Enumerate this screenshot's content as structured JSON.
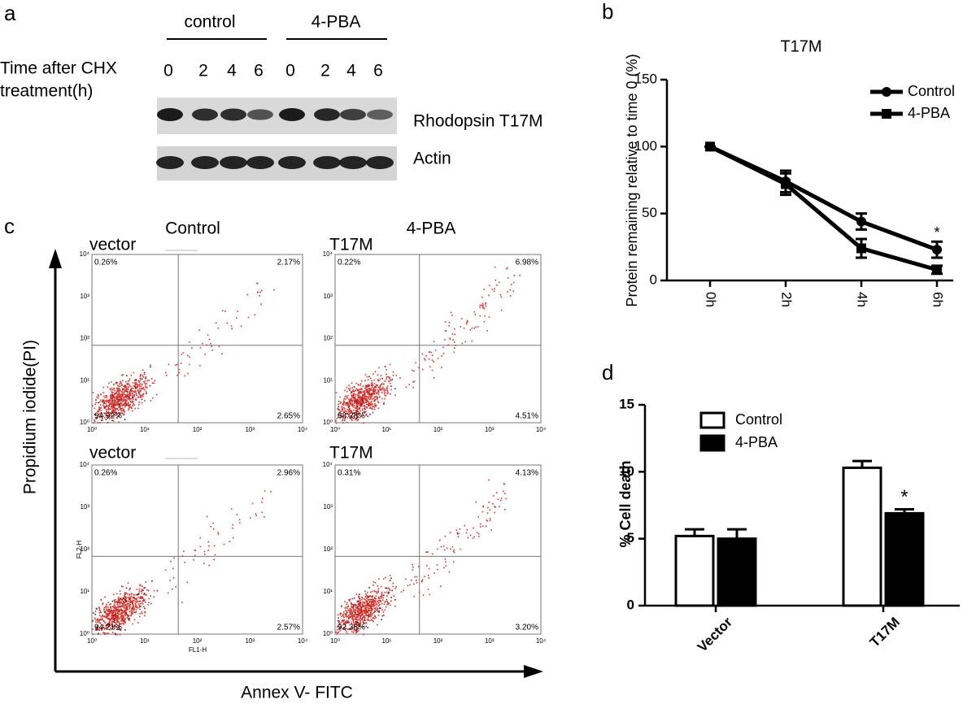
{
  "panel_labels": [
    "a",
    "b",
    "c",
    "d"
  ],
  "blot": {
    "groups": [
      "control",
      "4-PBA"
    ],
    "time_label": [
      "Time after CHX",
      "treatment(h)"
    ],
    "lanes": [
      "0",
      "2",
      "4",
      "6",
      "0",
      "2",
      "4",
      "6"
    ],
    "bands": [
      "Rhodopsin T17M",
      "Actin"
    ]
  },
  "flow": {
    "columns": [
      "Control",
      "4-PBA"
    ],
    "y_label": "Propidium iodide(PI)",
    "x_label": "Annex V- FITC",
    "axis_ticks": [
      "10⁰",
      "10¹",
      "10²",
      "10³",
      "10⁴"
    ],
    "channel_labels": [
      "FL2-H",
      "FL1-H"
    ],
    "plots": [
      {
        "label": "vector",
        "quadrants": [
          "0.26%",
          "2.17%",
          "94.92%",
          "2.65%"
        ]
      },
      {
        "label": "T17M",
        "quadrants": [
          "0.22%",
          "6.98%",
          "88.28%",
          "4.51%"
        ]
      },
      {
        "label": "vector",
        "quadrants": [
          "0.26%",
          "2.96%",
          "94.21%",
          "2.57%"
        ]
      },
      {
        "label": "T17M",
        "quadrants": [
          "0.31%",
          "4.13%",
          "92.36%",
          "3.20%"
        ]
      }
    ]
  },
  "chart_data": [
    {
      "type": "line",
      "title": "T17M",
      "y_label": "Protein remaining relative to time 0 (%)",
      "categories": [
        "0h",
        "2h",
        "4h",
        "6h"
      ],
      "ylim": [
        0,
        150
      ],
      "yticks": [
        0,
        50,
        100,
        150
      ],
      "legend": "upper right",
      "series": [
        {
          "name": "Control",
          "color": "#000000",
          "marker": "circle",
          "values": [
            100,
            74,
            44,
            23
          ],
          "errors": [
            0,
            8,
            6,
            6
          ]
        },
        {
          "name": "4-PBA",
          "color": "#000000",
          "marker": "square",
          "values": [
            100,
            72,
            24,
            8
          ],
          "errors": [
            0,
            8,
            7,
            3
          ]
        }
      ],
      "annotations": [
        {
          "text": "*",
          "x": "6h"
        }
      ]
    },
    {
      "type": "bar",
      "y_label": "% Cell death",
      "categories": [
        "Vector",
        "T17M"
      ],
      "ylim": [
        0,
        15
      ],
      "yticks": [
        0,
        5,
        10,
        15
      ],
      "legend": "upper left",
      "series": [
        {
          "name": "Control",
          "color": "#ffffff",
          "values": [
            5.2,
            10.3
          ],
          "errors": [
            0.5,
            0.5
          ]
        },
        {
          "name": "4-PBA",
          "color": "#000000",
          "values": [
            5.0,
            6.9
          ],
          "errors": [
            0.7,
            0.3
          ]
        }
      ],
      "annotations": [
        {
          "text": "*",
          "x": "T17M",
          "series": "4-PBA"
        }
      ]
    }
  ]
}
